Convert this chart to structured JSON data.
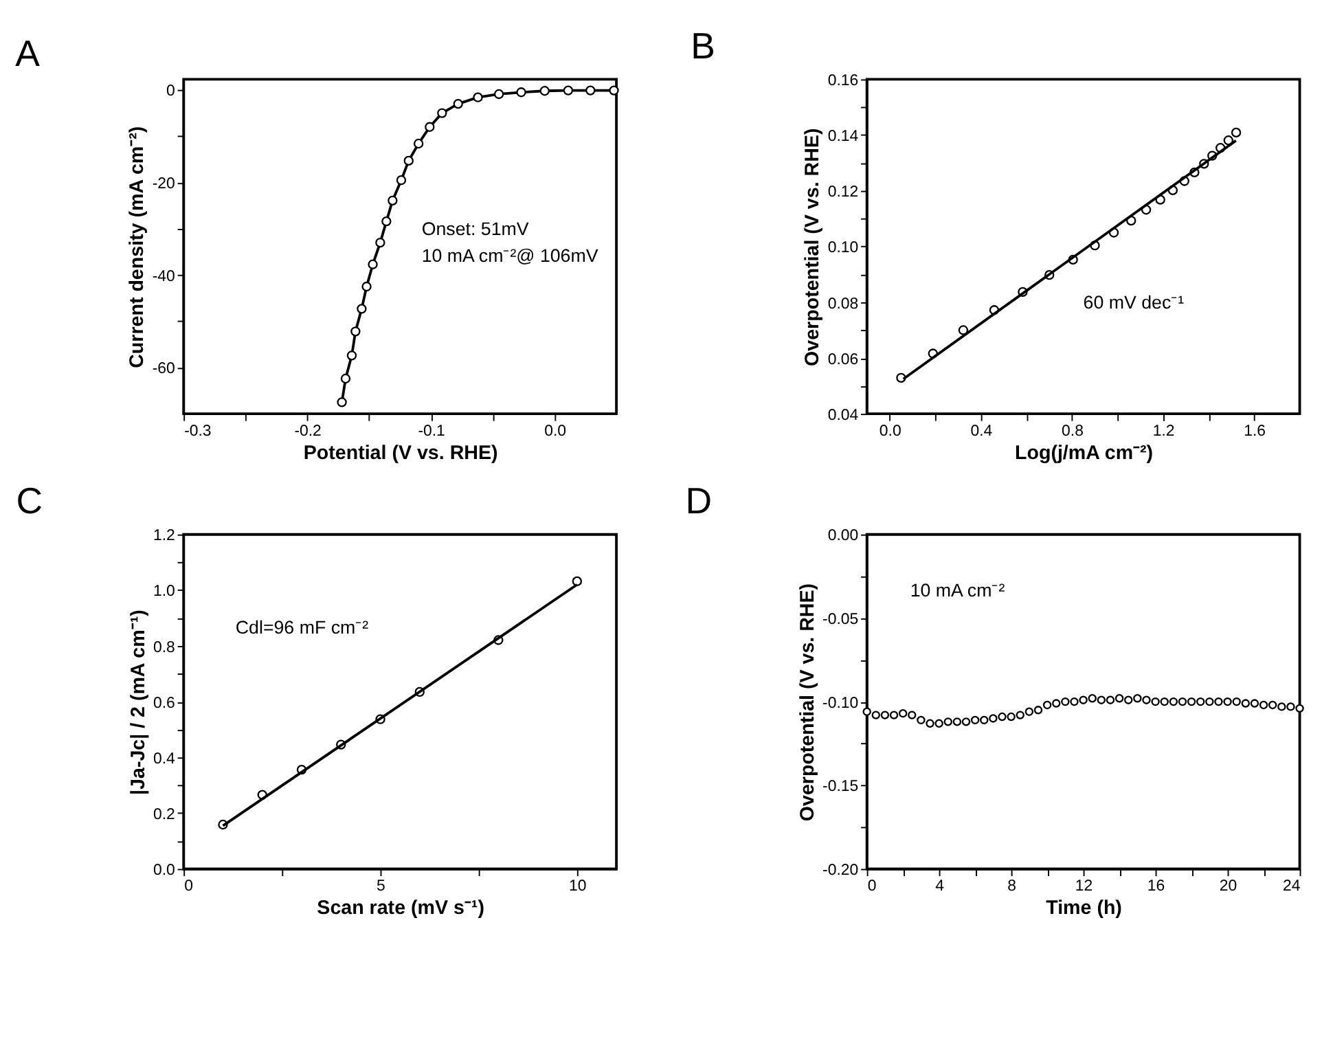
{
  "chart_data": [
    {
      "type": "line",
      "title": "A",
      "xlabel": "Potential (V vs. RHE)",
      "ylabel": "Current density (mA cm⁻²)",
      "xlim": [
        -0.3,
        0.05
      ],
      "ylim": [
        -70,
        2.3
      ],
      "xticks": [
        -0.3,
        {
          "value": -0.25,
          "label": null
        },
        -0.2,
        {
          "value": -0.15,
          "label": null
        },
        -0.1,
        {
          "value": -0.05,
          "label": null
        },
        {
          "value": 0,
          "label": "0.0"
        }
      ],
      "yticks": [
        -60,
        {
          "value": -50,
          "label": null
        },
        -40,
        {
          "value": -30,
          "label": null
        },
        -20,
        {
          "value": -10,
          "label": null
        },
        0
      ],
      "series": [
        {
          "color": "#000000",
          "marker": "circle",
          "x": [
            -0.172,
            -0.169,
            -0.164,
            -0.161,
            -0.156,
            -0.152,
            -0.147,
            -0.141,
            -0.136,
            -0.131,
            -0.124,
            -0.118,
            -0.11,
            -0.101,
            -0.091,
            -0.078,
            -0.062,
            -0.045,
            -0.027,
            -0.008,
            0.011,
            0.029,
            0.048
          ],
          "values": [
            -67.5,
            -62.4,
            -57.4,
            -52.2,
            -47.3,
            -42.5,
            -37.7,
            -33.0,
            -28.4,
            -23.9,
            -19.5,
            -15.3,
            -11.6,
            -8.0,
            -5.0,
            -3.0,
            -1.6,
            -0.9,
            -0.5,
            -0.2,
            -0.1,
            -0.1,
            -0.1
          ]
        }
      ],
      "annotations": [
        "Onset: 51mV",
        "10 mA cm⁻²@ 106mV"
      ]
    },
    {
      "type": "scatter",
      "title": "B",
      "xlabel": "Log(j/mA cm⁻²)",
      "ylabel": "Overpotential (V vs. RHE)",
      "xlim": [
        -0.1,
        1.8
      ],
      "ylim": [
        0.04,
        0.16
      ],
      "xticks": [
        {
          "value": 0,
          "label": "0.0"
        },
        {
          "value": 0.2,
          "label": null
        },
        0.4,
        {
          "value": 0.6,
          "label": null
        },
        0.8,
        {
          "value": 1.0,
          "label": null
        },
        1.2,
        {
          "value": 1.4,
          "label": null
        },
        1.6
      ],
      "yticks": [
        0.04,
        {
          "value": 0.05,
          "label": null
        },
        0.06,
        {
          "value": 0.07,
          "label": null
        },
        0.08,
        {
          "value": 0.09,
          "label": null
        },
        {
          "value": 0.1,
          "label": "0.10"
        },
        {
          "value": 0.11,
          "label": null
        },
        {
          "value": 0.12,
          "label": "0.12"
        },
        {
          "value": 0.13,
          "label": null
        },
        0.14,
        {
          "value": 0.15,
          "label": null
        },
        0.16
      ],
      "series": [
        {
          "color": "#000000",
          "marker": "circle",
          "x": [
            0.05,
            0.19,
            0.323,
            0.459,
            0.584,
            0.701,
            0.805,
            0.901,
            0.984,
            1.06,
            1.126,
            1.188,
            1.243,
            1.294,
            1.338,
            1.38,
            1.416,
            1.452,
            1.487,
            1.521
          ],
          "values": [
            0.0529,
            0.0616,
            0.07,
            0.0772,
            0.0837,
            0.0898,
            0.0953,
            0.1004,
            0.105,
            0.1093,
            0.1132,
            0.1168,
            0.1202,
            0.1235,
            0.1266,
            0.1297,
            0.1326,
            0.1354,
            0.1381,
            0.1409
          ]
        },
        {
          "type": "line",
          "color": "#000000",
          "marker": "none",
          "x": [
            0.06,
            1.52
          ],
          "values": [
            0.0525,
            0.138
          ]
        }
      ],
      "annotations": [
        "60 mV dec⁻¹"
      ]
    },
    {
      "type": "scatter",
      "title": "C",
      "xlabel": "Scan rate (mV s⁻¹)",
      "ylabel": "|Ja-Jc| / 2 (mA cm⁻¹)",
      "xlim": [
        0,
        11
      ],
      "ylim": [
        0,
        1.2
      ],
      "xticks": [
        0,
        {
          "value": 2.5,
          "label": null
        },
        5,
        {
          "value": 7.5,
          "label": null
        },
        10
      ],
      "yticks": [
        {
          "value": 0,
          "label": "0.0"
        },
        {
          "value": 0.1,
          "label": null
        },
        0.2,
        {
          "value": 0.3,
          "label": null
        },
        0.4,
        {
          "value": 0.5,
          "label": null
        },
        0.6,
        {
          "value": 0.7,
          "label": null
        },
        0.8,
        {
          "value": 0.9,
          "label": null
        },
        {
          "value": 1.0,
          "label": "1.0"
        },
        {
          "value": 1.1,
          "label": null
        },
        1.2
      ],
      "series": [
        {
          "color": "#000000",
          "marker": "circle",
          "x": [
            1,
            2,
            3,
            4,
            5,
            6,
            8,
            10
          ],
          "values": [
            0.159,
            0.266,
            0.356,
            0.446,
            0.537,
            0.635,
            0.821,
            1.032
          ]
        },
        {
          "type": "line",
          "color": "#000000",
          "marker": "none",
          "x": [
            1,
            10
          ],
          "values": [
            0.155,
            1.02
          ]
        }
      ],
      "annotations": [
        "Cdl=96 mF cm⁻²"
      ]
    },
    {
      "type": "scatter",
      "title": "D",
      "xlabel": "Time (h)",
      "ylabel": "Overpotential (V vs. RHE)",
      "xlim": [
        0,
        24
      ],
      "ylim": [
        -0.2,
        0
      ],
      "xticks": [
        0,
        {
          "value": 2,
          "label": null
        },
        4,
        {
          "value": 6,
          "label": null
        },
        8,
        {
          "value": 10,
          "label": null
        },
        12,
        {
          "value": 14,
          "label": null
        },
        16,
        {
          "value": 18,
          "label": null
        },
        20,
        {
          "value": 22,
          "label": null
        },
        24
      ],
      "yticks": [
        {
          "value": -0.2,
          "label": "-0.20"
        },
        {
          "value": -0.175,
          "label": null
        },
        -0.15,
        {
          "value": -0.125,
          "label": null
        },
        {
          "value": -0.1,
          "label": "-0.10"
        },
        {
          "value": -0.075,
          "label": null
        },
        -0.05,
        {
          "value": -0.025,
          "label": null
        },
        {
          "value": 0,
          "label": "0.00"
        }
      ],
      "series": [
        {
          "color": "#000000",
          "marker": "circle",
          "x": [
            0,
            0.5,
            1,
            1.5,
            2,
            2.5,
            3,
            3.5,
            4,
            4.5,
            5,
            5.5,
            6,
            6.5,
            7,
            7.5,
            8,
            8.5,
            9,
            9.5,
            10,
            10.5,
            11,
            11.5,
            12,
            12.5,
            13,
            13.5,
            14,
            14.5,
            15,
            15.5,
            16,
            16.5,
            17,
            17.5,
            18,
            18.5,
            19,
            19.5,
            20,
            20.5,
            21,
            21.5,
            22,
            22.5,
            23,
            23.5,
            24
          ],
          "values": [
            -0.106,
            -0.108,
            -0.108,
            -0.108,
            -0.107,
            -0.108,
            -0.111,
            -0.113,
            -0.113,
            -0.112,
            -0.112,
            -0.112,
            -0.111,
            -0.111,
            -0.11,
            -0.109,
            -0.109,
            -0.108,
            -0.106,
            -0.105,
            -0.102,
            -0.101,
            -0.1,
            -0.1,
            -0.099,
            -0.098,
            -0.099,
            -0.099,
            -0.098,
            -0.099,
            -0.098,
            -0.099,
            -0.1,
            -0.1,
            -0.1,
            -0.1,
            -0.1,
            -0.1,
            -0.1,
            -0.1,
            -0.1,
            -0.1,
            -0.101,
            -0.101,
            -0.102,
            -0.102,
            -0.103,
            -0.103,
            -0.104
          ]
        }
      ],
      "annotations": [
        "10 mA cm⁻²"
      ]
    }
  ]
}
